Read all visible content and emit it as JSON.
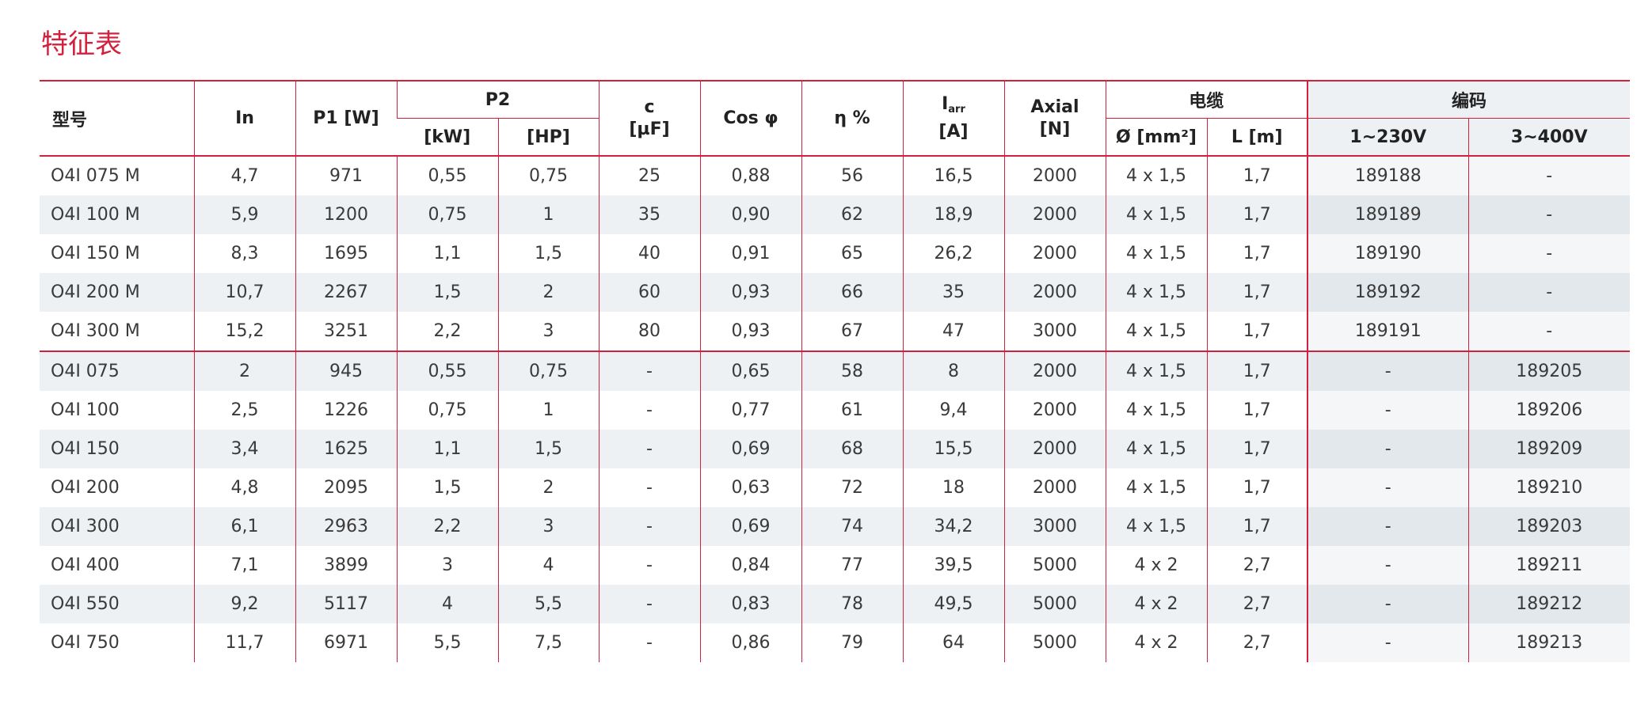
{
  "title": "特征表",
  "headers": {
    "model": "型号",
    "in": "In",
    "p1": "P1 [W]",
    "p2": "P2",
    "p2_kw": "[kW]",
    "p2_hp": "[HP]",
    "c_line1": "c",
    "c_line2": "[µF]",
    "cos": "Cos φ",
    "eta": "η %",
    "iarr_main": "I",
    "iarr_sub": "arr",
    "iarr_unit": "[A]",
    "axial_line1": "Axial",
    "axial_line2": "[N]",
    "cable": "电缆",
    "cable_dia": "Ø [mm²]",
    "cable_len": "L [m]",
    "code": "编码",
    "code_1ph": "1~230V",
    "code_3ph": "3~400V"
  },
  "rows": [
    [
      "O4I 075 M",
      "4,7",
      "971",
      "0,55",
      "0,75",
      "25",
      "0,88",
      "56",
      "16,5",
      "2000",
      "4 x 1,5",
      "1,7",
      "189188",
      "-"
    ],
    [
      "O4I 100 M",
      "5,9",
      "1200",
      "0,75",
      "1",
      "35",
      "0,90",
      "62",
      "18,9",
      "2000",
      "4 x 1,5",
      "1,7",
      "189189",
      "-"
    ],
    [
      "O4I 150 M",
      "8,3",
      "1695",
      "1,1",
      "1,5",
      "40",
      "0,91",
      "65",
      "26,2",
      "2000",
      "4 x 1,5",
      "1,7",
      "189190",
      "-"
    ],
    [
      "O4I 200 M",
      "10,7",
      "2267",
      "1,5",
      "2",
      "60",
      "0,93",
      "66",
      "35",
      "2000",
      "4 x 1,5",
      "1,7",
      "189192",
      "-"
    ],
    [
      "O4I 300 M",
      "15,2",
      "3251",
      "2,2",
      "3",
      "80",
      "0,93",
      "67",
      "47",
      "3000",
      "4 x 1,5",
      "1,7",
      "189191",
      "-"
    ],
    [
      "O4I 075",
      "2",
      "945",
      "0,55",
      "0,75",
      "-",
      "0,65",
      "58",
      "8",
      "2000",
      "4 x 1,5",
      "1,7",
      "-",
      "189205"
    ],
    [
      "O4I 100",
      "2,5",
      "1226",
      "0,75",
      "1",
      "-",
      "0,77",
      "61",
      "9,4",
      "2000",
      "4 x 1,5",
      "1,7",
      "-",
      "189206"
    ],
    [
      "O4I 150",
      "3,4",
      "1625",
      "1,1",
      "1,5",
      "-",
      "0,69",
      "68",
      "15,5",
      "2000",
      "4 x 1,5",
      "1,7",
      "-",
      "189209"
    ],
    [
      "O4I 200",
      "4,8",
      "2095",
      "1,5",
      "2",
      "-",
      "0,63",
      "72",
      "18",
      "2000",
      "4 x 1,5",
      "1,7",
      "-",
      "189210"
    ],
    [
      "O4I 300",
      "6,1",
      "2963",
      "2,2",
      "3",
      "-",
      "0,69",
      "74",
      "34,2",
      "3000",
      "4 x 1,5",
      "1,7",
      "-",
      "189203"
    ],
    [
      "O4I 400",
      "7,1",
      "3899",
      "3",
      "4",
      "-",
      "0,84",
      "77",
      "39,5",
      "5000",
      "4 x 2",
      "2,7",
      "-",
      "189211"
    ],
    [
      "O4I 550",
      "9,2",
      "5117",
      "4",
      "5,5",
      "-",
      "0,83",
      "78",
      "49,5",
      "5000",
      "4 x 2",
      "2,7",
      "-",
      "189212"
    ],
    [
      "O4I 750",
      "11,7",
      "6971",
      "5,5",
      "7,5",
      "-",
      "0,86",
      "79",
      "64",
      "5000",
      "4 x 2",
      "2,7",
      "-",
      "189213"
    ]
  ],
  "colors": {
    "accent": "#d3213d",
    "row_shade": "#edf1f4",
    "code_shade": "#e2e8ec"
  }
}
